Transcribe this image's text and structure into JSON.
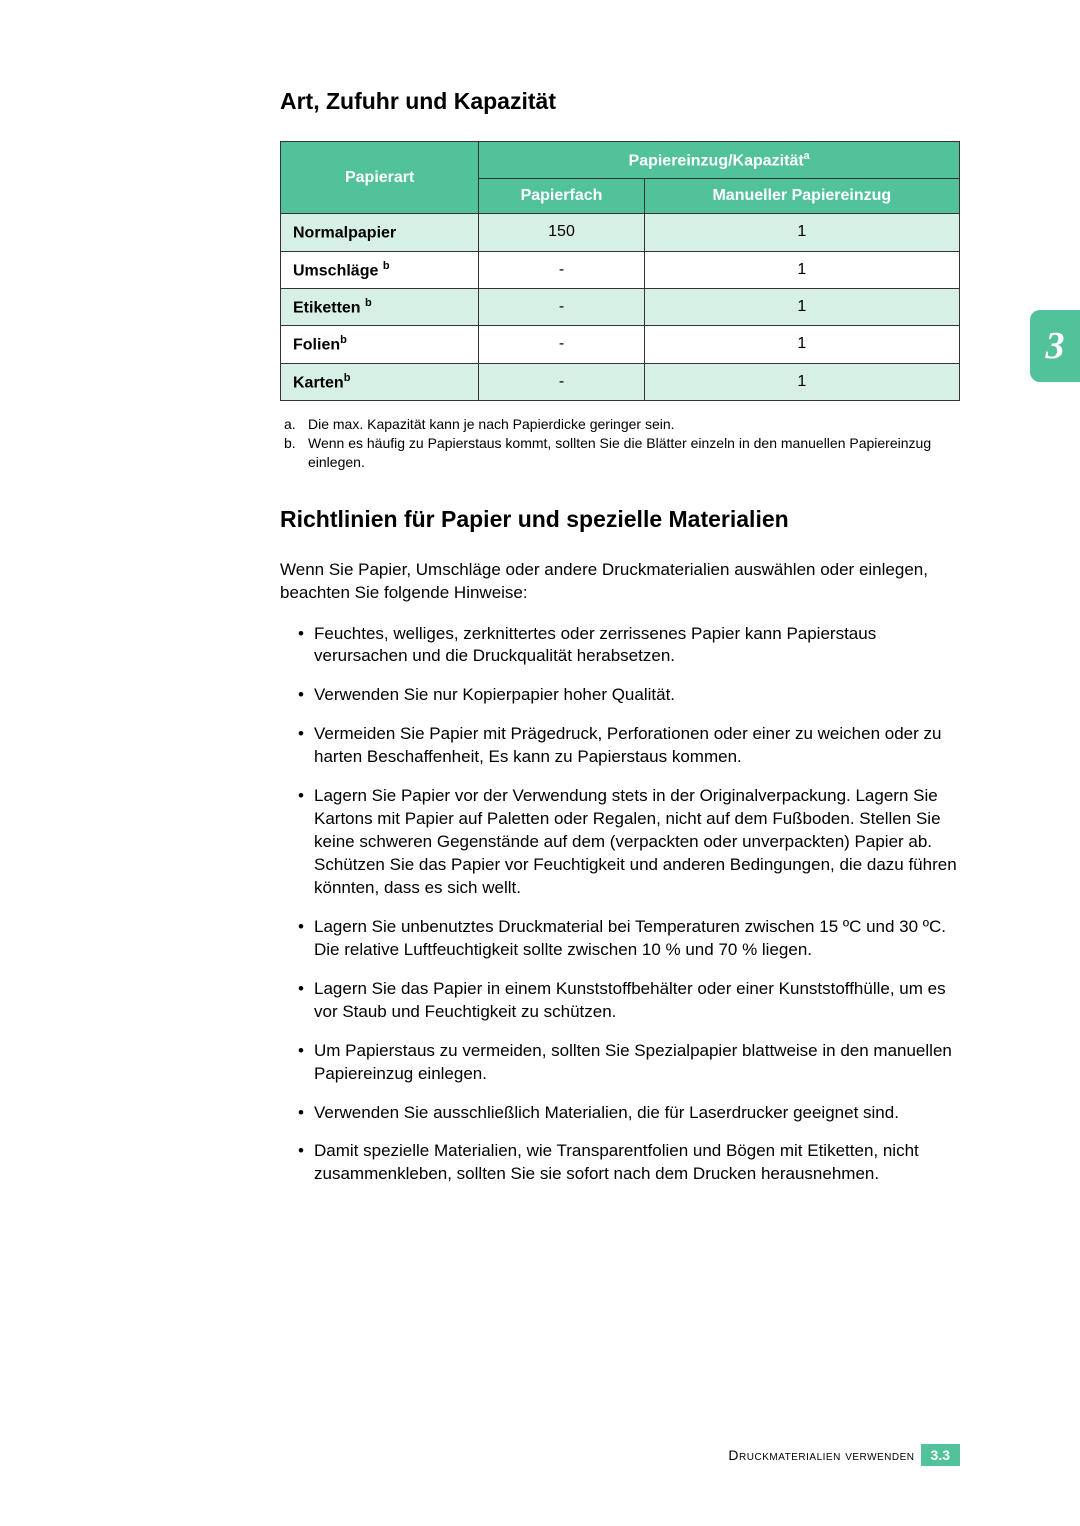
{
  "chapter_tab": "3",
  "section1": {
    "title": "Art, Zufuhr und Kapazität"
  },
  "table": {
    "header_paper_type": "Papierart",
    "header_capacity_group": "Papiereinzug/Kapazität",
    "header_capacity_sup": "a",
    "header_tray": "Papierfach",
    "header_manual": "Manueller Papiereinzug",
    "rows": [
      {
        "type": "Normalpapier",
        "sup": "",
        "tray": "150",
        "manual": "1"
      },
      {
        "type": "Umschläge",
        "sup": "b",
        "tray": "-",
        "manual": "1"
      },
      {
        "type": "Etiketten",
        "sup": "b",
        "tray": "-",
        "manual": "1"
      },
      {
        "type": "Folien",
        "sup": "b",
        "tray": "-",
        "manual": "1"
      },
      {
        "type": "Karten",
        "sup": "b",
        "tray": "-",
        "manual": "1"
      }
    ]
  },
  "footnotes": {
    "a_marker": "a.",
    "a_text": "Die max. Kapazität kann je nach Papierdicke geringer sein.",
    "b_marker": "b.",
    "b_text": "Wenn es häufig zu Papierstaus kommt, sollten Sie die Blätter einzeln in den manuellen Papiereinzug einlegen."
  },
  "section2": {
    "title": "Richtlinien für Papier und spezielle Materialien",
    "intro": "Wenn Sie Papier, Umschläge oder andere Druckmaterialien auswählen oder einlegen, beachten Sie folgende Hinweise:",
    "bullets": [
      "Feuchtes, welliges, zerknittertes oder zerrissenes Papier kann Papierstaus verursachen und die Druckqualität herabsetzen.",
      "Verwenden Sie nur Kopierpapier hoher Qualität.",
      "Vermeiden Sie Papier mit Prägedruck, Perforationen oder einer zu weichen oder zu harten Beschaffenheit, Es kann zu Papierstaus kommen.",
      "Lagern Sie Papier vor der Verwendung stets in der Originalverpackung. Lagern Sie Kartons mit Papier auf Paletten oder Regalen, nicht auf dem Fußboden. Stellen Sie keine schweren Gegenstände auf dem (verpackten oder unverpackten) Papier ab. Schützen Sie das Papier vor Feuchtigkeit und anderen Bedingungen, die dazu führen könnten, dass es sich wellt.",
      "Lagern Sie unbenutztes Druckmaterial bei Temperaturen zwischen 15 ºC und 30 ºC. Die relative Luftfeuchtigkeit sollte zwischen 10 % und 70 % liegen.",
      "Lagern Sie das Papier in einem Kunststoffbehälter oder einer Kunststoffhülle, um es vor Staub und Feuchtigkeit zu schützen.",
      "Um Papierstaus zu vermeiden, sollten Sie Spezialpapier blattweise in den manuellen Papiereinzug einlegen.",
      "Verwenden Sie ausschließlich Materialien, die für Laserdrucker geeignet sind.",
      "Damit spezielle Materialien, wie Transparentfolien und Bögen mit Etiketten, nicht zusammenkleben, sollten Sie sie sofort nach dem Drucken herausnehmen."
    ]
  },
  "footer": {
    "label": "Druckmaterialien verwenden",
    "page": "3.3"
  },
  "colors": {
    "accent": "#52c29b",
    "table_row_tint": "#d6f0e6"
  }
}
